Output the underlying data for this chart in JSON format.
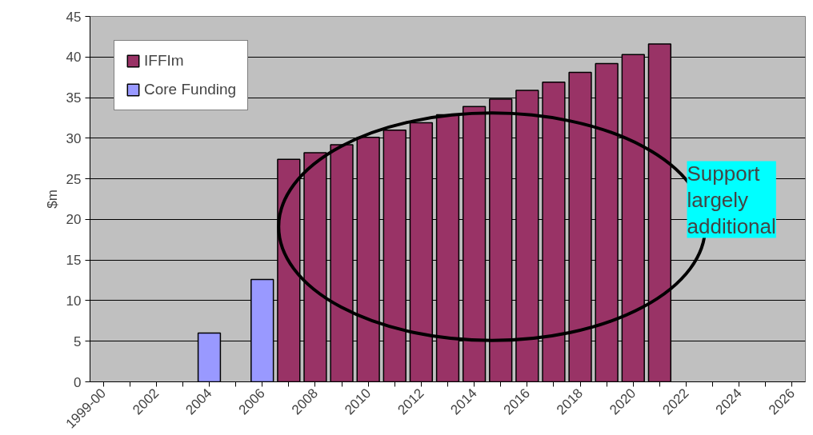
{
  "chart_data": {
    "type": "bar",
    "ylabel": "$m",
    "categories": [
      "1999-00",
      null,
      "2002",
      null,
      "2004",
      null,
      "2006",
      null,
      "2008",
      null,
      "2010",
      null,
      "2012",
      null,
      "2014",
      null,
      "2016",
      null,
      "2018",
      null,
      "2020",
      null,
      "2022",
      null,
      "2024",
      null,
      "2026"
    ],
    "series": [
      {
        "name": "IFFIm",
        "color": "#993366",
        "values": [
          null,
          null,
          null,
          null,
          null,
          null,
          null,
          27.4,
          28.2,
          29.2,
          30.1,
          31.0,
          31.9,
          32.9,
          33.9,
          34.8,
          35.9,
          36.9,
          38.1,
          39.2,
          40.3,
          41.6,
          null,
          null,
          null,
          null,
          null
        ]
      },
      {
        "name": "Core Funding",
        "color": "#9999ff",
        "values": [
          null,
          null,
          null,
          null,
          6.0,
          null,
          12.6,
          null,
          null,
          null,
          null,
          null,
          null,
          null,
          null,
          null,
          null,
          null,
          null,
          null,
          null,
          null,
          null,
          null,
          null,
          null,
          null
        ]
      }
    ],
    "ylim": [
      0,
      45
    ],
    "yticks": [
      0,
      5,
      10,
      15,
      20,
      25,
      30,
      35,
      40,
      45
    ],
    "grid": "y",
    "legend": "top left",
    "annotations": [
      "Support largely additional"
    ]
  }
}
